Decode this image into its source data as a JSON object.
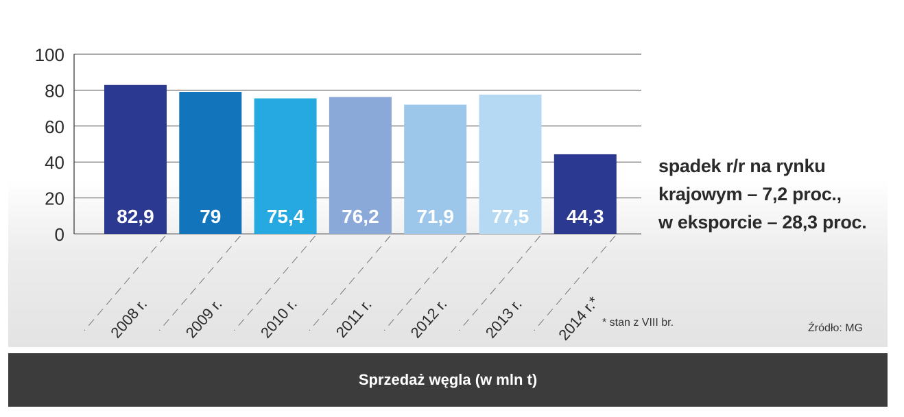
{
  "chart_data": {
    "type": "bar",
    "categories": [
      "2008 r.",
      "2009 r.",
      "2010 r.",
      "2011 r.",
      "2012 r.",
      "2013 r.",
      "2014 r.*"
    ],
    "values": [
      82.9,
      79,
      75.4,
      76.2,
      71.9,
      77.5,
      44.3
    ],
    "value_labels": [
      "82,9",
      "79",
      "75,4",
      "76,2",
      "71,9",
      "77,5",
      "44,3"
    ],
    "bar_colors": [
      "#2b3990",
      "#1275bc",
      "#25a9e0",
      "#8aa8d8",
      "#9cc7ea",
      "#b5d9f3",
      "#2b3990"
    ],
    "label_colors": [
      "#ffffff",
      "#ffffff",
      "#ffffff",
      "#ffffff",
      "#ffffff",
      "#ffffff",
      "#ffffff"
    ],
    "ylim": [
      0,
      100
    ],
    "yticks": [
      0,
      20,
      40,
      60,
      80,
      100
    ],
    "grid": true,
    "title": "Sprzedaż węgla (w mln t)",
    "xlabel": "",
    "ylabel": ""
  },
  "annotation": {
    "lines": [
      "spadek r/r na rynku",
      "krajowym – 7,2 proc.,",
      "w eksporcie – 28,3 proc."
    ]
  },
  "footnote": "* stan z VIII br.",
  "source": "Źródło: MG",
  "footer_title": "Sprzedaż węgla (w mln t)",
  "colors": {
    "footer_bg": "#3c3c3c",
    "grid": "#555555",
    "axis_text": "#2a2a2a"
  }
}
